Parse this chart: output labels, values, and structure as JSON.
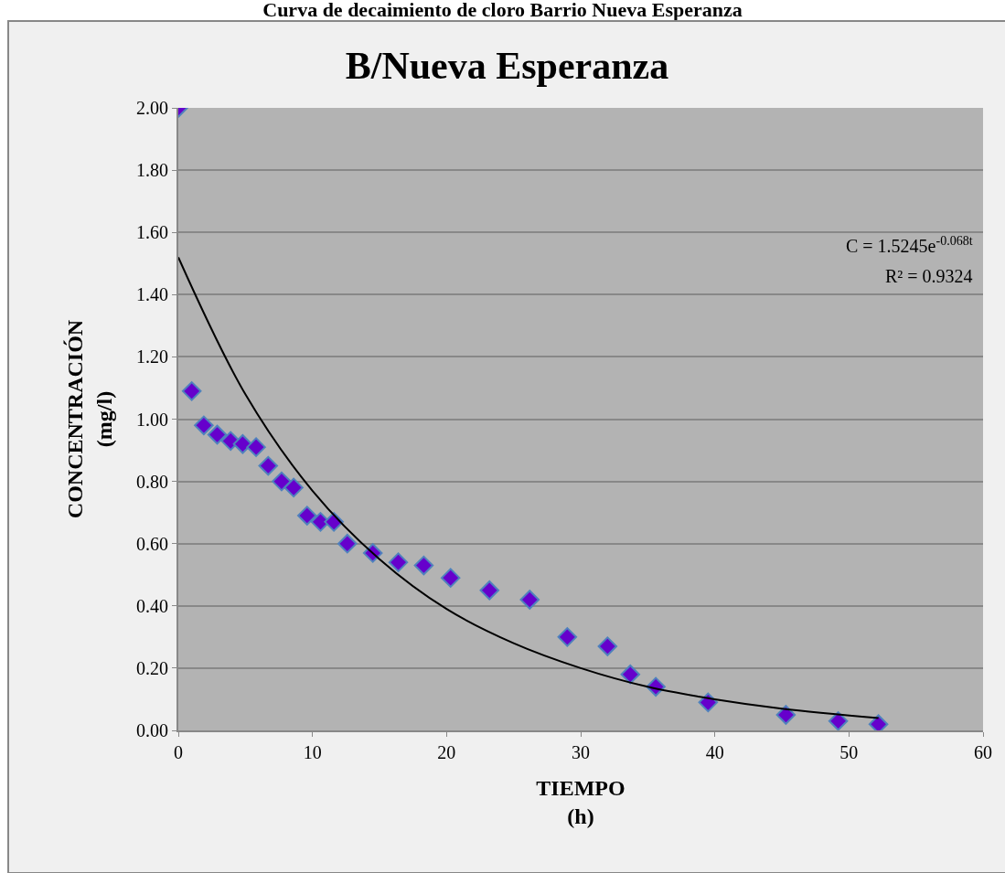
{
  "chart_data": {
    "type": "scatter",
    "title": "B/Nueva Esperanza",
    "subtitle": "Curva de decaimiento de cloro Barrio Nueva Esperanza",
    "xlabel": "TIEMPO\n(h)",
    "ylabel": "CONCENTRACIÓN\n(mg/l)",
    "xlim": [
      0,
      60
    ],
    "xticks": [
      0,
      10,
      20,
      30,
      40,
      50,
      60
    ],
    "ylim": [
      0,
      2
    ],
    "yticks": [
      {
        "value": 0,
        "label": "0.00"
      },
      {
        "value": 0.2,
        "label": "0.20"
      },
      {
        "value": 0.4,
        "label": "0.40"
      },
      {
        "value": 0.6,
        "label": "0.60"
      },
      {
        "value": 0.8,
        "label": "0.80"
      },
      {
        "value": 1,
        "label": "1.00"
      },
      {
        "value": 1.2,
        "label": "1.20"
      },
      {
        "value": 1.4,
        "label": "1.40"
      },
      {
        "value": 1.6,
        "label": "1.60"
      },
      {
        "value": 1.8,
        "label": "1.80"
      },
      {
        "value": 2,
        "label": "2.00"
      }
    ],
    "grid": "y",
    "marker": "diamond",
    "series": [
      {
        "color": "#6600cc",
        "x": [
          0,
          1,
          1.9,
          2.9,
          3.9,
          4.8,
          5.8,
          6.7,
          7.7,
          8.6,
          9.6,
          10.6,
          11.6,
          12.6,
          14.5,
          16.4,
          18.3,
          20.3,
          23.2,
          26.2,
          29,
          32,
          33.7,
          35.6,
          39.5,
          45.3,
          49.2,
          52.2
        ],
        "values": [
          2.0,
          1.09,
          0.98,
          0.95,
          0.93,
          0.92,
          0.91,
          0.85,
          0.8,
          0.78,
          0.69,
          0.67,
          0.67,
          0.6,
          0.57,
          0.54,
          0.53,
          0.49,
          0.45,
          0.42,
          0.3,
          0.27,
          0.18,
          0.14,
          0.09,
          0.05,
          0.03,
          0.02
        ]
      },
      {
        "type": "line",
        "color": "#000000",
        "marker": "none",
        "x": [
          0,
          5,
          10,
          15,
          20,
          25,
          30,
          35,
          40,
          45,
          52.2
        ],
        "values": [
          1.52,
          1.08,
          0.77,
          0.55,
          0.39,
          0.28,
          0.2,
          0.14,
          0.1,
          0.07,
          0.04
        ]
      }
    ],
    "annotations": [
      "C = 1.5245e$^{-0.068t}$",
      "R² = 0.9324"
    ]
  }
}
